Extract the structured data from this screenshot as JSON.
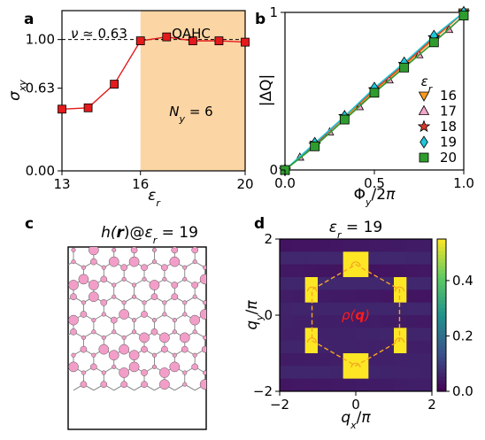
{
  "panel_labels": [
    "a",
    "b",
    "c",
    "d"
  ],
  "chart_data": [
    {
      "panel": "a",
      "type": "line",
      "xlabel": "ε_r",
      "ylabel": "σ_xy",
      "xlim": [
        13,
        20
      ],
      "ylim": [
        0,
        1.22
      ],
      "xticks": [
        13,
        16,
        20
      ],
      "yticks": [
        0.0,
        0.63,
        1.0
      ],
      "xtick_labels": [
        "13",
        "16",
        "20"
      ],
      "ytick_labels": [
        "0.00",
        "0.63",
        "1.00"
      ],
      "x": [
        13,
        14,
        15,
        16,
        17,
        18,
        19,
        20
      ],
      "y": [
        0.47,
        0.48,
        0.66,
        0.99,
        1.02,
        0.99,
        0.99,
        0.98
      ],
      "reference_line": 1.0,
      "shaded_region": [
        16,
        20
      ],
      "shaded_label": "QAHC",
      "left_annotation": "ν ≃ 0.63",
      "inner_annotation": "N_y = 6",
      "marker_color": "#e41a1c",
      "line_color": "#e41a1c",
      "shade_color": "#fbd5a4"
    },
    {
      "panel": "b",
      "type": "line",
      "xlabel": "Φ_y/2π",
      "ylabel": "|ΔQ|",
      "xlim": [
        0,
        1
      ],
      "ylim": [
        0,
        1
      ],
      "xticks": [
        0.0,
        0.5,
        1.0
      ],
      "yticks": [
        0,
        1
      ],
      "xtick_labels": [
        "0.0",
        "0.5",
        "1.0"
      ],
      "ytick_labels": [
        "0",
        "1"
      ],
      "legend_title": "ε_r",
      "legend_position": "right",
      "series": [
        {
          "name": "16",
          "color": "#ff9a1f",
          "marker": "triangle-down",
          "x": [
            0,
            0.1667,
            0.3333,
            0.5,
            0.6667,
            0.8333,
            1.0
          ],
          "y": [
            0,
            0.16,
            0.33,
            0.5,
            0.66,
            0.83,
            1.0
          ]
        },
        {
          "name": "17",
          "color": "#f4a6c8",
          "marker": "triangle-up",
          "x": [
            0,
            0.0833,
            0.1667,
            0.25,
            0.3333,
            0.4167,
            0.5,
            0.5833,
            0.6667,
            0.75,
            0.8333,
            0.9167,
            1.0
          ],
          "y": [
            0,
            0.08,
            0.16,
            0.24,
            0.32,
            0.4,
            0.49,
            0.57,
            0.65,
            0.73,
            0.81,
            0.89,
            0.98
          ]
        },
        {
          "name": "18",
          "color": "#d63a2a",
          "marker": "star",
          "x": [
            0,
            0.1667,
            0.3333,
            0.5,
            0.6667,
            0.8333,
            1.0
          ],
          "y": [
            0,
            0.16,
            0.34,
            0.51,
            0.67,
            0.84,
            1.0
          ]
        },
        {
          "name": "19",
          "color": "#1fc7d8",
          "marker": "diamond",
          "x": [
            0,
            0.1667,
            0.3333,
            0.5,
            0.6667,
            0.8333,
            1.0
          ],
          "y": [
            0,
            0.17,
            0.34,
            0.52,
            0.68,
            0.85,
            1.0
          ]
        },
        {
          "name": "20",
          "color": "#2e9c2e",
          "marker": "square",
          "x": [
            0,
            0.1667,
            0.3333,
            0.5,
            0.6667,
            0.8333,
            1.0
          ],
          "y": [
            0,
            0.15,
            0.32,
            0.49,
            0.65,
            0.81,
            0.98
          ]
        }
      ]
    },
    {
      "panel": "c",
      "type": "lattice",
      "title": "h(r)@ε_r = 19",
      "title_parts": {
        "func": "h(",
        "arg": "r",
        "close": ")@",
        "var": "ε_r",
        "value": " = 19"
      },
      "node_color": "#f29ec8",
      "edge_color": "#808080"
    },
    {
      "panel": "d",
      "type": "heatmap",
      "title": "ε_r = 19",
      "xlabel": "q_x/π",
      "ylabel": "q_y/π",
      "xlim": [
        -2,
        2
      ],
      "ylim": [
        -2,
        2
      ],
      "xticks": [
        -2,
        0,
        2
      ],
      "yticks": [
        -2,
        0,
        2
      ],
      "colorbar_range": [
        0,
        0.55
      ],
      "colorbar_ticks": [
        0.0,
        0.2,
        0.4
      ],
      "colorbar_tick_labels": [
        "0.0",
        "0.2",
        "0.4"
      ],
      "inner_label": "ρ(q)",
      "inner_label_color": "#ff1a1a",
      "hexagon_color": "#f5a623",
      "peaks": [
        [
          0,
          1.33
        ],
        [
          0,
          -1.33
        ],
        [
          1.15,
          0.67
        ],
        [
          1.15,
          -0.67
        ],
        [
          -1.15,
          0.67
        ],
        [
          -1.15,
          -0.67
        ]
      ],
      "peak_value": 0.55
    }
  ]
}
